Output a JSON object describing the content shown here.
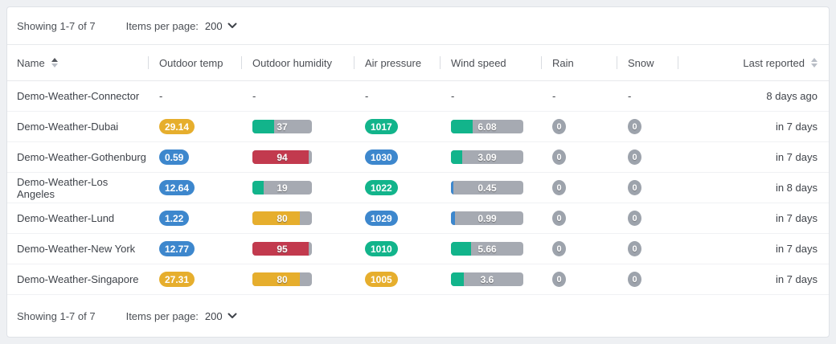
{
  "pagination": {
    "showing": "Showing 1-7 of 7",
    "per_page_label": "Items per page:",
    "per_page_value": "200"
  },
  "columns": [
    {
      "label": "Name",
      "sort": "asc"
    },
    {
      "label": "Outdoor temp"
    },
    {
      "label": "Outdoor humidity"
    },
    {
      "label": "Air pressure"
    },
    {
      "label": "Wind speed"
    },
    {
      "label": "Rain"
    },
    {
      "label": "Snow"
    },
    {
      "label": "Last reported",
      "sort": "unsorted"
    }
  ],
  "empty_value": "-",
  "colors": {
    "blue": "#3d87cd",
    "green": "#12b48b",
    "orange": "#e6ae2d",
    "yellow": "#e6ae2d",
    "red": "#c23a4e",
    "bar_gray": "#a6aab2",
    "badge_gray": "#9da3ac"
  },
  "rows": [
    {
      "name": "Demo-Weather-Connector",
      "temp": null,
      "humidity": null,
      "pressure": null,
      "wind": null,
      "rain": null,
      "snow": null,
      "last_reported": "8 days ago"
    },
    {
      "name": "Demo-Weather-Dubai",
      "temp": {
        "value": "29.14",
        "color": "orange"
      },
      "humidity": {
        "value": "37",
        "pct": 37,
        "color": "green"
      },
      "pressure": {
        "value": "1017",
        "color": "green"
      },
      "wind": {
        "value": "6.08",
        "pct": 30,
        "color": "green"
      },
      "rain": "0",
      "snow": "0",
      "last_reported": "in 7 days"
    },
    {
      "name": "Demo-Weather-Gothenburg",
      "temp": {
        "value": "0.59",
        "color": "blue"
      },
      "humidity": {
        "value": "94",
        "pct": 94,
        "color": "red"
      },
      "pressure": {
        "value": "1030",
        "color": "blue"
      },
      "wind": {
        "value": "3.09",
        "pct": 15,
        "color": "green"
      },
      "rain": "0",
      "snow": "0",
      "last_reported": "in 7 days"
    },
    {
      "name": "Demo-Weather-Los Angeles",
      "temp": {
        "value": "12.64",
        "color": "blue"
      },
      "humidity": {
        "value": "19",
        "pct": 19,
        "color": "green"
      },
      "pressure": {
        "value": "1022",
        "color": "green"
      },
      "wind": {
        "value": "0.45",
        "pct": 3,
        "color": "blue"
      },
      "rain": "0",
      "snow": "0",
      "last_reported": "in 8 days"
    },
    {
      "name": "Demo-Weather-Lund",
      "temp": {
        "value": "1.22",
        "color": "blue"
      },
      "humidity": {
        "value": "80",
        "pct": 80,
        "color": "yellow"
      },
      "pressure": {
        "value": "1029",
        "color": "blue"
      },
      "wind": {
        "value": "0.99",
        "pct": 5,
        "color": "blue"
      },
      "rain": "0",
      "snow": "0",
      "last_reported": "in 7 days"
    },
    {
      "name": "Demo-Weather-New York",
      "temp": {
        "value": "12.77",
        "color": "blue"
      },
      "humidity": {
        "value": "95",
        "pct": 95,
        "color": "red"
      },
      "pressure": {
        "value": "1010",
        "color": "green"
      },
      "wind": {
        "value": "5.66",
        "pct": 28,
        "color": "green"
      },
      "rain": "0",
      "snow": "0",
      "last_reported": "in 7 days"
    },
    {
      "name": "Demo-Weather-Singapore",
      "temp": {
        "value": "27.31",
        "color": "orange"
      },
      "humidity": {
        "value": "80",
        "pct": 80,
        "color": "yellow"
      },
      "pressure": {
        "value": "1005",
        "color": "orange"
      },
      "wind": {
        "value": "3.6",
        "pct": 18,
        "color": "green"
      },
      "rain": "0",
      "snow": "0",
      "last_reported": "in 7 days"
    }
  ]
}
